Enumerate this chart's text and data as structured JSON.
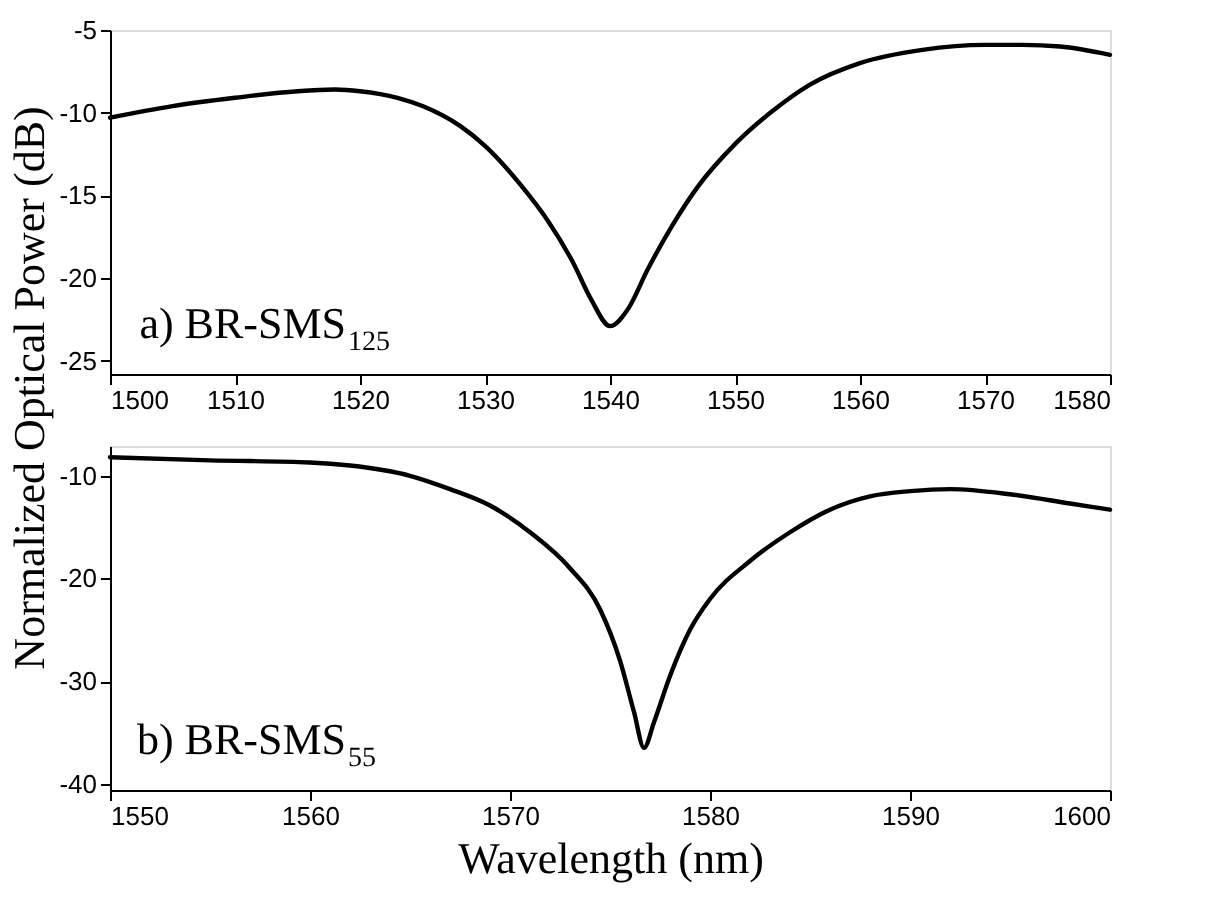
{
  "chart_data": [
    {
      "type": "line",
      "ylabel": "Normalized Optical Power (dB)",
      "annotations": [
        "a) BR-SMS$_{125}$"
      ],
      "xlim": [
        1500,
        1580
      ],
      "xticks": [
        1500,
        1510,
        1520,
        1530,
        1540,
        1550,
        1560,
        1570,
        1580
      ],
      "ylim": [
        -25.8,
        -5
      ],
      "yticks": [
        -25,
        -20,
        -15,
        -10,
        -5
      ],
      "grid": false,
      "line_style": "solid",
      "marker": "none",
      "series": [
        {
          "color": "#000000",
          "x": [
            1500,
            1505,
            1510,
            1515,
            1518,
            1520,
            1523,
            1525,
            1528,
            1530,
            1533,
            1535,
            1537,
            1538.5,
            1540,
            1541.5,
            1543,
            1545,
            1547,
            1550,
            1553,
            1556,
            1560,
            1565,
            1570,
            1573,
            1576,
            1580
          ],
          "values": [
            -10.3,
            -9.6,
            -9.1,
            -8.7,
            -8.6,
            -8.7,
            -9.1,
            -9.6,
            -10.8,
            -12,
            -14.5,
            -16.5,
            -19,
            -21.3,
            -22.9,
            -21.8,
            -19.5,
            -16.8,
            -14.5,
            -11.9,
            -9.9,
            -8.3,
            -7.0,
            -6.2,
            -5.9,
            -5.9,
            -6.0,
            -6.5
          ]
        }
      ]
    },
    {
      "type": "line",
      "xlabel": "Wavelength (nm)",
      "annotations": [
        "b) BR-SMS$_{55}$"
      ],
      "xlim": [
        1550,
        1600
      ],
      "xticks": [
        1550,
        1560,
        1570,
        1580,
        1590,
        1600
      ],
      "ylim": [
        -40.6,
        -7.1
      ],
      "yticks": [
        -40,
        -30,
        -20,
        -10
      ],
      "grid": false,
      "line_style": "solid",
      "marker": "none",
      "series": [
        {
          "color": "#000000",
          "x": [
            1550,
            1555,
            1560,
            1562,
            1565,
            1567,
            1569,
            1571,
            1573,
            1574.5,
            1575.5,
            1576.2,
            1576.7,
            1577.2,
            1578,
            1579,
            1580,
            1582,
            1584,
            1586,
            1588,
            1590,
            1592,
            1595,
            1598,
            1600
          ],
          "values": [
            -8.2,
            -8.5,
            -8.7,
            -9.0,
            -10,
            -11.3,
            -12.9,
            -15.5,
            -19,
            -23,
            -28,
            -33,
            -36.5,
            -34,
            -29.5,
            -25,
            -22,
            -18.3,
            -15.5,
            -13.3,
            -12,
            -11.5,
            -11.3,
            -11.8,
            -12.7,
            -13.3
          ]
        }
      ]
    }
  ]
}
